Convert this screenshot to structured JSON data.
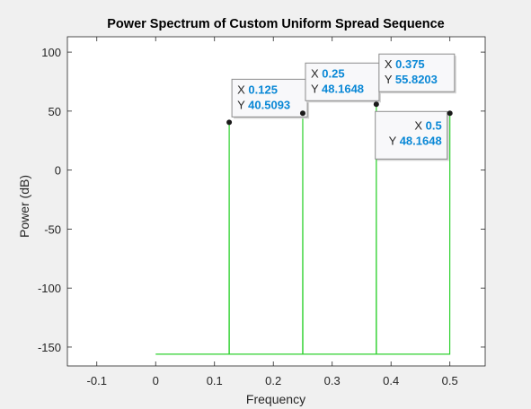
{
  "chart_data": {
    "type": "line",
    "title": "Power Spectrum of Custom Uniform Spread Sequence",
    "xlabel": "Frequency",
    "ylabel": "Power (dB)",
    "xlim": [
      -0.15,
      0.56
    ],
    "ylim": [
      -166,
      113
    ],
    "xticks": [
      -0.1,
      0,
      0.1,
      0.2,
      0.3,
      0.4,
      0.5
    ],
    "xtick_labels": [
      "-0.1",
      "0",
      "0.1",
      "0.2",
      "0.3",
      "0.4",
      "0.5"
    ],
    "yticks": [
      -150,
      -100,
      -50,
      0,
      50,
      100
    ],
    "ytick_labels": [
      "-150",
      "-100",
      "-50",
      "0",
      "50",
      "100"
    ],
    "grid": false,
    "series": [
      {
        "name": "Power Spectrum",
        "color": "#2fd12f",
        "x": [
          0,
          0.1248,
          0.125,
          0.1252,
          0.2498,
          0.25,
          0.2502,
          0.3748,
          0.375,
          0.3752,
          0.4998,
          0.5
        ],
        "y": [
          -156,
          -156,
          40.5093,
          -156,
          -156,
          48.1648,
          -156,
          -156,
          55.8203,
          -156,
          -156,
          48.1648
        ]
      }
    ],
    "datatips": [
      {
        "x": 0.125,
        "y": 40.5093,
        "x_label": "X",
        "y_label": "Y",
        "x_text": "0.125",
        "y_text": "40.5093"
      },
      {
        "x": 0.25,
        "y": 48.1648,
        "x_label": "X",
        "y_label": "Y",
        "x_text": "0.25",
        "y_text": "48.1648"
      },
      {
        "x": 0.375,
        "y": 55.8203,
        "x_label": "X",
        "y_label": "Y",
        "x_text": "0.375",
        "y_text": "55.8203"
      },
      {
        "x": 0.5,
        "y": 48.1648,
        "x_label": "X",
        "y_label": "Y",
        "x_text": "0.5",
        "y_text": "48.1648"
      }
    ],
    "colors": {
      "figure_background": "#f0f0f0",
      "axes_background": "#ffffff",
      "axes_line": "#262626",
      "datatip_value": "#0a88d6",
      "datatip_label": "#262626",
      "datatip_border": "#8c8c8c",
      "datatip_fill": "#f8f8fa"
    }
  }
}
